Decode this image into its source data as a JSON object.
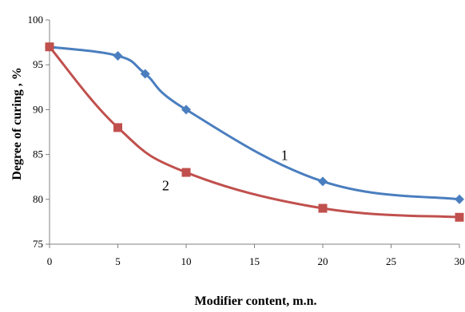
{
  "chart_data": {
    "type": "line",
    "xlabel": "Modifier content, m.n.",
    "ylabel": "Degree of curing , %",
    "xlim": [
      0,
      30
    ],
    "ylim": [
      75,
      100
    ],
    "x_ticks": [
      "0",
      "5",
      "10",
      "15",
      "20",
      "25",
      "30"
    ],
    "y_ticks": [
      "75",
      "80",
      "85",
      "90",
      "95",
      "100"
    ],
    "grid": false,
    "series": [
      {
        "name": "1",
        "color": "#4a7ebf",
        "marker": "diamond",
        "x": [
          0,
          5,
          7,
          10,
          20,
          30
        ],
        "y": [
          97,
          96,
          94,
          90,
          82,
          80
        ]
      },
      {
        "name": "2",
        "color": "#c0504d",
        "marker": "square",
        "x": [
          0,
          5,
          10,
          20,
          30
        ],
        "y": [
          97,
          88,
          83,
          79,
          78
        ]
      }
    ]
  }
}
